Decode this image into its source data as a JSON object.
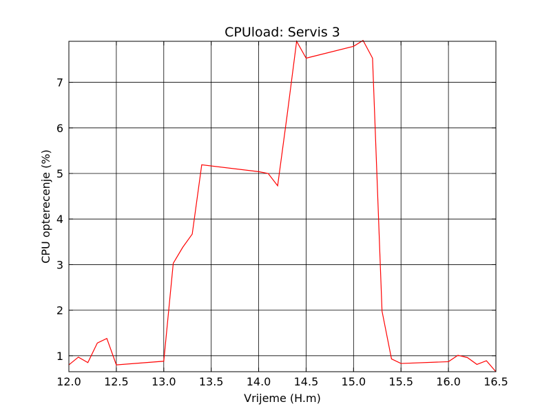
{
  "chart_data": {
    "type": "line",
    "title": "CPUload: Servis 3",
    "xlabel": "Vrijeme (H.m)",
    "ylabel": "CPU opterecenje (%)",
    "xlim": [
      12.0,
      16.5
    ],
    "ylim": [
      0.65,
      7.9
    ],
    "grid": true,
    "xticks": [
      12.0,
      12.5,
      13.0,
      13.5,
      14.0,
      14.5,
      15.0,
      15.5,
      16.0,
      16.5
    ],
    "xtick_labels": [
      "12.0",
      "12.5",
      "13.0",
      "13.5",
      "14.0",
      "14.5",
      "15.0",
      "15.5",
      "16.0",
      "16.5"
    ],
    "yticks": [
      1,
      2,
      3,
      4,
      5,
      6,
      7
    ],
    "ytick_labels": [
      "1",
      "2",
      "3",
      "4",
      "5",
      "6",
      "7"
    ],
    "series": [
      {
        "color": "#ff0000",
        "x": [
          12.0,
          12.1,
          12.2,
          12.3,
          12.4,
          12.5,
          13.0,
          13.1,
          13.2,
          13.3,
          13.4,
          14.0,
          14.1,
          14.2,
          14.3,
          14.4,
          14.5,
          15.0,
          15.1,
          15.2,
          15.3,
          15.4,
          15.5,
          16.0,
          16.1,
          16.2,
          16.3,
          16.4,
          16.5
        ],
        "y": [
          0.8,
          0.97,
          0.85,
          1.28,
          1.38,
          0.8,
          0.88,
          3.03,
          3.38,
          3.67,
          5.19,
          5.04,
          5.0,
          4.73,
          6.28,
          7.9,
          7.53,
          7.79,
          7.92,
          7.53,
          1.98,
          0.93,
          0.83,
          0.87,
          1.01,
          0.96,
          0.81,
          0.89,
          0.65
        ]
      }
    ]
  }
}
